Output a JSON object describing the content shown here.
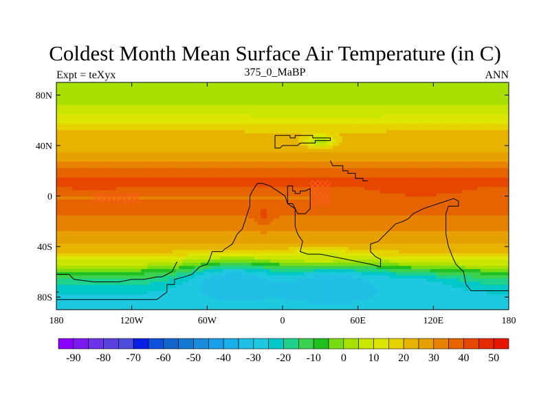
{
  "title": "Coldest Month Mean Surface Air Temperature (in C)",
  "left_subtitle": "Expt = teXyx",
  "center_subtitle": "375_0_MaBP",
  "right_subtitle": "ANN",
  "chart_data": {
    "type": "heatmap",
    "title": "Coldest Month Mean Surface Air Temperature (in C)",
    "xlim": [
      -180,
      180
    ],
    "ylim": [
      -90,
      90
    ],
    "x_ticks": [
      {
        "value": -180,
        "label": "180"
      },
      {
        "value": -120,
        "label": "120W"
      },
      {
        "value": -60,
        "label": "60W"
      },
      {
        "value": 0,
        "label": "0"
      },
      {
        "value": 60,
        "label": "60E"
      },
      {
        "value": 120,
        "label": "120E"
      },
      {
        "value": 180,
        "label": "180"
      }
    ],
    "y_ticks": [
      {
        "value": 80,
        "label": "80N"
      },
      {
        "value": 40,
        "label": "40N"
      },
      {
        "value": 0,
        "label": "0"
      },
      {
        "value": -40,
        "label": "40S"
      },
      {
        "value": -80,
        "label": "80S"
      }
    ],
    "colorbar": {
      "levels": [
        -95,
        -90,
        -85,
        -80,
        -75,
        -70,
        -65,
        -60,
        -55,
        -50,
        -45,
        -40,
        -35,
        -30,
        -25,
        -20,
        -15,
        -10,
        -5,
        0,
        5,
        10,
        15,
        20,
        25,
        30,
        35,
        40,
        45,
        50,
        55
      ],
      "labels": [
        "-90",
        "-80",
        "-70",
        "-60",
        "-50",
        "-40",
        "-30",
        "-20",
        "-10",
        "0",
        "10",
        "20",
        "30",
        "40",
        "50"
      ],
      "colors": [
        "#8a00ff",
        "#7a1aee",
        "#6b33e6",
        "#5c40dd",
        "#4d4ddd",
        "#0a1ee6",
        "#0d50d9",
        "#1064cc",
        "#1478d2",
        "#1a8cd9",
        "#1a9fe6",
        "#1aaee6",
        "#20bfe6",
        "#1ec9e0",
        "#00c8c8",
        "#1ed28c",
        "#3cd250",
        "#20c020",
        "#78dc14",
        "#a8e000",
        "#c8e600",
        "#dce600",
        "#e6d200",
        "#e6b400",
        "#e6a000",
        "#e68200",
        "#e66400",
        "#e64600",
        "#e62a00",
        "#e61400"
      ]
    },
    "zonal_mean_temperature": [
      {
        "lat": 90,
        "value": 2
      },
      {
        "lat": 85,
        "value": 2
      },
      {
        "lat": 80,
        "value": 2
      },
      {
        "lat": 75,
        "value": 4
      },
      {
        "lat": 70,
        "value": 7
      },
      {
        "lat": 65,
        "value": 9
      },
      {
        "lat": 60,
        "value": 13
      },
      {
        "lat": 55,
        "value": 17
      },
      {
        "lat": 50,
        "value": 21
      },
      {
        "lat": 45,
        "value": 23
      },
      {
        "lat": 40,
        "value": 23
      },
      {
        "lat": 35,
        "value": 25
      },
      {
        "lat": 30,
        "value": 28
      },
      {
        "lat": 25,
        "value": 33
      },
      {
        "lat": 20,
        "value": 37
      },
      {
        "lat": 15,
        "value": 40
      },
      {
        "lat": 10,
        "value": 41
      },
      {
        "lat": 5,
        "value": 38
      },
      {
        "lat": 0,
        "value": 34
      },
      {
        "lat": -5,
        "value": 36
      },
      {
        "lat": -10,
        "value": 37
      },
      {
        "lat": -15,
        "value": 35
      },
      {
        "lat": -20,
        "value": 32
      },
      {
        "lat": -25,
        "value": 31
      },
      {
        "lat": -30,
        "value": 29
      },
      {
        "lat": -35,
        "value": 27
      },
      {
        "lat": -40,
        "value": 24
      },
      {
        "lat": -45,
        "value": 20
      },
      {
        "lat": -50,
        "value": 12
      },
      {
        "lat": -55,
        "value": 4
      },
      {
        "lat": -60,
        "value": -7
      },
      {
        "lat": -65,
        "value": -15
      },
      {
        "lat": -70,
        "value": -20
      },
      {
        "lat": -75,
        "value": -24
      },
      {
        "lat": -80,
        "value": -26
      },
      {
        "lat": -85,
        "value": -27
      },
      {
        "lat": -90,
        "value": -27
      }
    ],
    "anomalies": [
      {
        "name": "north-continent-cool-core",
        "lon": 30,
        "lat": 44,
        "dlon": 12,
        "dlat": 5,
        "value": 3
      },
      {
        "name": "tethys-hot-band",
        "lon": 110,
        "lat": 5,
        "dlon": 60,
        "dlat": 10,
        "value": 41
      },
      {
        "name": "west-pacific-hot-band",
        "lon": -150,
        "lat": 10,
        "dlon": 40,
        "dlat": 6,
        "value": 41
      },
      {
        "name": "south-atlantic-hot-spot",
        "lon": -15,
        "lat": -15,
        "dlon": 8,
        "dlat": 8,
        "value": 41
      },
      {
        "name": "west-gondwana-cold",
        "lon": -40,
        "lat": -68,
        "dlon": 40,
        "dlat": 15,
        "value": -35
      },
      {
        "name": "central-gondwana-cold",
        "lon": 40,
        "lat": -70,
        "dlon": 50,
        "dlat": 15,
        "value": -35
      },
      {
        "name": "east-gondwana-cold",
        "lon": 100,
        "lat": -74,
        "dlon": 40,
        "dlat": 12,
        "value": -30
      },
      {
        "name": "central-gondwana-margin-warm",
        "lon": 30,
        "lat": -48,
        "dlon": 25,
        "dlat": 6,
        "value": 8
      }
    ],
    "continent_outlines": [
      {
        "name": "north-continent",
        "points": [
          [
            -6,
            48
          ],
          [
            6,
            48
          ],
          [
            6,
            46
          ],
          [
            10,
            46
          ],
          [
            10,
            48
          ],
          [
            24,
            48
          ],
          [
            24,
            46
          ],
          [
            38,
            46
          ],
          [
            38,
            44
          ],
          [
            30,
            44
          ],
          [
            26,
            44
          ],
          [
            26,
            42
          ],
          [
            14,
            42
          ],
          [
            12,
            40
          ],
          [
            0,
            40
          ],
          [
            -2,
            38
          ],
          [
            -6,
            38
          ],
          [
            -6,
            48
          ]
        ]
      },
      {
        "name": "northeast-islands",
        "points": [
          [
            38,
            28
          ],
          [
            40,
            24
          ],
          [
            48,
            24
          ],
          [
            48,
            20
          ],
          [
            52,
            20
          ],
          [
            52,
            18
          ],
          [
            58,
            18
          ],
          [
            58,
            14
          ],
          [
            64,
            14
          ],
          [
            64,
            12
          ],
          [
            68,
            12
          ]
        ]
      },
      {
        "name": "laurussia-east",
        "points": [
          [
            4,
            8
          ],
          [
            8,
            8
          ],
          [
            8,
            4
          ],
          [
            10,
            4
          ],
          [
            10,
            2
          ],
          [
            14,
            2
          ],
          [
            14,
            4
          ],
          [
            18,
            4
          ],
          [
            22,
            6
          ],
          [
            22,
            -10
          ],
          [
            18,
            -14
          ],
          [
            12,
            -14
          ],
          [
            10,
            -10
          ],
          [
            8,
            -6
          ],
          [
            4,
            -6
          ],
          [
            4,
            8
          ]
        ]
      },
      {
        "name": "gondwana",
        "points": [
          [
            -92,
            -70
          ],
          [
            -86,
            -70
          ],
          [
            -86,
            -66
          ],
          [
            -78,
            -64
          ],
          [
            -72,
            -62
          ],
          [
            -70,
            -60
          ],
          [
            -66,
            -56
          ],
          [
            -60,
            -54
          ],
          [
            -58,
            -50
          ],
          [
            -56,
            -44
          ],
          [
            -52,
            -44
          ],
          [
            -48,
            -44
          ],
          [
            -46,
            -42
          ],
          [
            -40,
            -38
          ],
          [
            -36,
            -30
          ],
          [
            -32,
            -26
          ],
          [
            -30,
            -20
          ],
          [
            -28,
            -14
          ],
          [
            -26,
            -8
          ],
          [
            -26,
            0
          ],
          [
            -24,
            4
          ],
          [
            -20,
            10
          ],
          [
            -16,
            10
          ],
          [
            -10,
            8
          ],
          [
            -4,
            4
          ],
          [
            2,
            0
          ],
          [
            4,
            -6
          ],
          [
            10,
            -10
          ],
          [
            10,
            -24
          ],
          [
            12,
            -30
          ],
          [
            16,
            -36
          ],
          [
            14,
            -44
          ],
          [
            20,
            -46
          ],
          [
            30,
            -46
          ],
          [
            40,
            -48
          ],
          [
            50,
            -50
          ],
          [
            60,
            -52
          ],
          [
            70,
            -54
          ],
          [
            78,
            -56
          ],
          [
            78,
            -50
          ],
          [
            74,
            -48
          ],
          [
            70,
            -44
          ],
          [
            70,
            -38
          ],
          [
            76,
            -36
          ],
          [
            80,
            -32
          ],
          [
            86,
            -26
          ],
          [
            90,
            -22
          ],
          [
            96,
            -20
          ],
          [
            100,
            -18
          ],
          [
            104,
            -14
          ],
          [
            108,
            -12
          ],
          [
            112,
            -10
          ],
          [
            118,
            -8
          ],
          [
            124,
            -6
          ],
          [
            130,
            -4
          ],
          [
            136,
            -2
          ],
          [
            140,
            -4
          ],
          [
            140,
            -8
          ],
          [
            132,
            -8
          ],
          [
            130,
            -14
          ],
          [
            130,
            -30
          ],
          [
            132,
            -40
          ],
          [
            136,
            -50
          ],
          [
            138,
            -54
          ],
          [
            144,
            -60
          ],
          [
            146,
            -70
          ],
          [
            150,
            -75
          ],
          [
            180,
            -75
          ]
        ]
      },
      {
        "name": "southwest-coast",
        "points": [
          [
            -180,
            -82
          ],
          [
            -100,
            -82
          ],
          [
            -92,
            -76
          ],
          [
            -92,
            -70
          ]
        ]
      },
      {
        "name": "far-south-west",
        "points": [
          [
            -180,
            -62
          ],
          [
            -170,
            -62
          ],
          [
            -166,
            -66
          ],
          [
            -150,
            -68
          ],
          [
            -130,
            -68
          ],
          [
            -120,
            -66
          ],
          [
            -110,
            -66
          ],
          [
            -100,
            -64
          ],
          [
            -96,
            -64
          ],
          [
            -92,
            -62
          ],
          [
            -88,
            -60
          ],
          [
            -86,
            -56
          ],
          [
            -84,
            -52
          ]
        ]
      },
      {
        "name": "south-polar-edge",
        "points": [
          [
            -180,
            -76
          ],
          [
            -178,
            -76
          ]
        ]
      }
    ],
    "hatch_regions": [
      {
        "name": "tethys-diamond-hatch",
        "lon_min": 22,
        "lon_max": 38,
        "lat_min": -8,
        "lat_max": 12
      },
      {
        "name": "west-diamond-hatch",
        "lon_min": -150,
        "lon_max": -116,
        "lat_min": -6,
        "lat_max": 0
      }
    ]
  }
}
